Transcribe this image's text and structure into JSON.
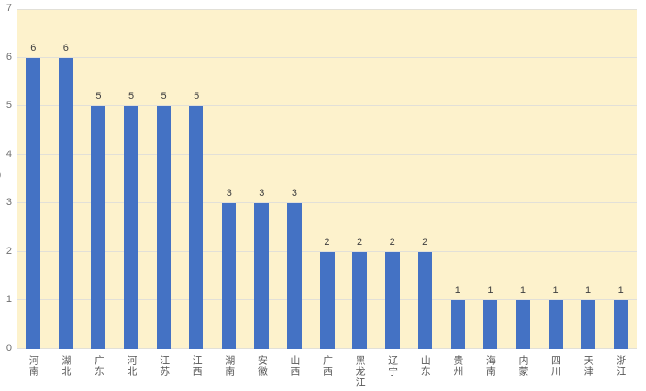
{
  "chart_data": {
    "type": "bar",
    "categories": [
      "河南",
      "湖北",
      "广东",
      "河北",
      "江苏",
      "江西",
      "湖南",
      "安徽",
      "山西",
      "广西",
      "黑龙江",
      "辽宁",
      "山东",
      "贵州",
      "海南",
      "内蒙",
      "四川",
      "天津",
      "浙江"
    ],
    "values": [
      6,
      6,
      5,
      5,
      5,
      5,
      3,
      3,
      3,
      2,
      2,
      2,
      2,
      1,
      1,
      1,
      1,
      1,
      1
    ],
    "data_labels": [
      "6",
      "6",
      "5",
      "5",
      "5",
      "5",
      "3",
      "3",
      "3",
      "2",
      "2",
      "2",
      "2",
      "1",
      "1",
      "1",
      "1",
      "1",
      "1"
    ],
    "title": "",
    "xlabel": "",
    "ylabel": "",
    "ylim": [
      0,
      7
    ],
    "yticks": [
      "0",
      "1",
      "2",
      "3",
      "4",
      "5",
      "6",
      "7"
    ],
    "grid": true,
    "legend": "none",
    "clipped_left_text": "0",
    "colors": {
      "bar": "#4472C4",
      "plot_background": "#FDF2CC",
      "page_background": "#FFFFFF",
      "gridline": "#E2E0D8",
      "value_label": "#404040",
      "tick_label": "#6F6F6F",
      "x_label": "#595959"
    }
  }
}
